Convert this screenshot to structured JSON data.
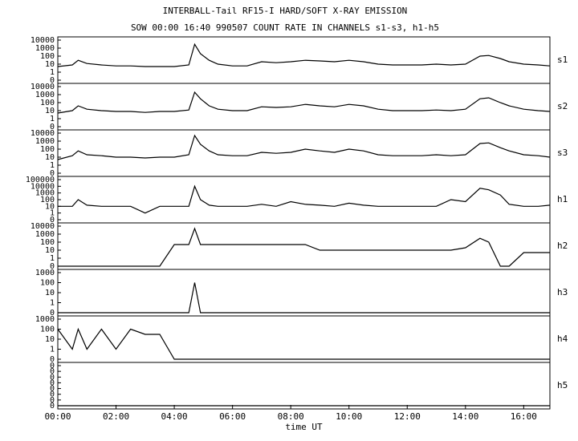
{
  "chart_data": [
    {
      "type": "line",
      "title": "INTERBALL-Tail RF15-I HARD/SOFT X-RAY EMISSION",
      "subtitle": "SOW 00:00 16:40 990507  COUNT RATE IN CHANNELS s1-s3, h1-h5",
      "x": [
        0,
        0.5,
        0.7,
        1,
        1.5,
        2,
        2.5,
        3,
        3.5,
        4,
        4.5,
        4.7,
        4.9,
        5.2,
        5.5,
        6,
        6.5,
        7,
        7.5,
        8,
        8.5,
        9,
        9.5,
        10,
        10.5,
        11,
        11.5,
        12,
        12.5,
        13,
        13.5,
        14,
        14.5,
        14.8,
        15.2,
        15.5,
        16,
        16.5,
        16.9
      ],
      "series": [
        {
          "name": "s1",
          "color": "#000000",
          "values": [
            5,
            8,
            30,
            12,
            8,
            6,
            6,
            5,
            5,
            5,
            8,
            3000,
            200,
            30,
            10,
            6,
            6,
            20,
            15,
            20,
            30,
            25,
            20,
            30,
            20,
            10,
            8,
            8,
            8,
            10,
            8,
            10,
            100,
            120,
            50,
            20,
            10,
            8,
            6
          ]
        }
      ],
      "xlim": [
        0,
        16.9
      ],
      "ylim": [
        0,
        10000
      ],
      "yticks": [
        0,
        1,
        10,
        100,
        1000,
        10000
      ],
      "yscale": "log"
    },
    {
      "type": "line",
      "x": [
        0,
        0.5,
        0.7,
        1,
        1.5,
        2,
        2.5,
        3,
        3.5,
        4,
        4.5,
        4.7,
        4.9,
        5.2,
        5.5,
        6,
        6.5,
        7,
        7.5,
        8,
        8.5,
        9,
        9.5,
        10,
        10.5,
        11,
        11.5,
        12,
        12.5,
        13,
        13.5,
        14,
        14.5,
        14.8,
        15.2,
        15.5,
        16,
        16.5,
        16.9
      ],
      "series": [
        {
          "name": "s2",
          "color": "#000000",
          "values": [
            5,
            10,
            40,
            15,
            10,
            8,
            8,
            6,
            8,
            8,
            12,
            2000,
            300,
            40,
            15,
            10,
            10,
            30,
            25,
            30,
            60,
            40,
            30,
            60,
            40,
            15,
            10,
            10,
            10,
            12,
            10,
            15,
            300,
            400,
            100,
            40,
            15,
            10,
            8
          ]
        }
      ],
      "xlim": [
        0,
        16.9
      ],
      "ylim": [
        0,
        10000
      ],
      "yticks": [
        0,
        1,
        10,
        100,
        1000,
        10000
      ],
      "yscale": "log"
    },
    {
      "type": "line",
      "x": [
        0,
        0.5,
        0.7,
        1,
        1.5,
        2,
        2.5,
        3,
        3.5,
        4,
        4.5,
        4.7,
        4.9,
        5.2,
        5.5,
        6,
        6.5,
        7,
        7.5,
        8,
        8.5,
        9,
        9.5,
        10,
        10.5,
        11,
        11.5,
        12,
        12.5,
        13,
        13.5,
        14,
        14.5,
        14.8,
        15.2,
        15.5,
        16,
        16.5,
        16.9
      ],
      "series": [
        {
          "name": "s3",
          "color": "#000000",
          "values": [
            5,
            15,
            60,
            20,
            15,
            10,
            10,
            8,
            10,
            10,
            20,
            5000,
            400,
            60,
            20,
            15,
            15,
            40,
            30,
            40,
            100,
            60,
            40,
            100,
            60,
            20,
            15,
            15,
            15,
            20,
            15,
            20,
            500,
            600,
            150,
            60,
            20,
            15,
            10
          ]
        }
      ],
      "xlim": [
        0,
        16.9
      ],
      "ylim": [
        0,
        10000
      ],
      "yticks": [
        0,
        1,
        10,
        100,
        1000,
        10000
      ],
      "yscale": "log"
    },
    {
      "type": "line",
      "x": [
        0,
        0.5,
        0.7,
        1,
        1.5,
        2,
        2.5,
        3,
        3.5,
        4,
        4.5,
        4.7,
        4.9,
        5.2,
        5.5,
        6,
        6.5,
        7,
        7.5,
        8,
        8.5,
        9,
        9.5,
        10,
        10.5,
        11,
        11.5,
        12,
        12.5,
        13,
        13.5,
        14,
        14.5,
        14.8,
        15.2,
        15.5,
        16,
        16.5,
        16.9
      ],
      "series": [
        {
          "name": "h1",
          "color": "#000000",
          "values": [
            10,
            10,
            100,
            15,
            10,
            10,
            10,
            1,
            10,
            10,
            10,
            10000,
            100,
            15,
            10,
            10,
            10,
            20,
            10,
            50,
            20,
            15,
            10,
            30,
            15,
            10,
            10,
            10,
            10,
            10,
            100,
            50,
            5000,
            3000,
            500,
            20,
            10,
            10,
            15
          ]
        }
      ],
      "xlim": [
        0,
        16.9
      ],
      "ylim": [
        0,
        100000
      ],
      "yticks": [
        0,
        1,
        10,
        100,
        1000,
        10000,
        100000
      ],
      "yscale": "log"
    },
    {
      "type": "line",
      "x": [
        0,
        0.5,
        0.7,
        1,
        1.5,
        2,
        2.5,
        3,
        3.5,
        4,
        4.5,
        4.7,
        4.9,
        5.2,
        5.5,
        6,
        6.5,
        7,
        7.5,
        8,
        8.5,
        9,
        9.5,
        10,
        10.5,
        11,
        11.5,
        12,
        12.5,
        13,
        13.5,
        14,
        14.5,
        14.8,
        15.2,
        15.5,
        16,
        16.5,
        16.9
      ],
      "series": [
        {
          "name": "h2",
          "color": "#000000",
          "values": [
            0,
            0,
            0,
            0,
            0,
            0,
            0,
            0,
            0,
            50,
            50,
            5000,
            50,
            50,
            50,
            50,
            50,
            50,
            50,
            50,
            50,
            10,
            10,
            10,
            10,
            10,
            10,
            10,
            10,
            10,
            10,
            20,
            300,
            100,
            0,
            0,
            5,
            5,
            5
          ]
        }
      ],
      "xlim": [
        0,
        16.9
      ],
      "ylim": [
        0,
        10000
      ],
      "yticks": [
        0,
        1,
        10,
        100,
        1000,
        10000
      ],
      "yscale": "log"
    },
    {
      "type": "line",
      "x": [
        0,
        0.5,
        0.7,
        1,
        1.5,
        2,
        2.5,
        3,
        3.5,
        4,
        4.5,
        4.7,
        4.9,
        5.2,
        5.5,
        6,
        6.5,
        7,
        7.5,
        8,
        8.5,
        9,
        9.5,
        10,
        10.5,
        11,
        11.5,
        12,
        12.5,
        13,
        13.5,
        14,
        14.5,
        14.8,
        15.2,
        15.5,
        16,
        16.5,
        16.9
      ],
      "series": [
        {
          "name": "h3",
          "color": "#000000",
          "values": [
            0,
            0,
            0,
            0,
            0,
            0,
            0,
            0,
            0,
            0,
            0,
            100,
            0,
            0,
            0,
            0,
            0,
            0,
            0,
            0,
            0,
            0,
            0,
            0,
            0,
            0,
            0,
            0,
            0,
            0,
            0,
            0,
            0,
            0,
            0,
            0,
            0,
            0,
            0
          ]
        }
      ],
      "xlim": [
        0,
        16.9
      ],
      "ylim": [
        0,
        1000
      ],
      "yticks": [
        0,
        1,
        10,
        100,
        1000
      ],
      "yscale": "log"
    },
    {
      "type": "line",
      "x": [
        0,
        0.5,
        0.7,
        1,
        1.5,
        2,
        2.5,
        3,
        3.5,
        4,
        4.5,
        4.7,
        4.9,
        5.2,
        5.5,
        6,
        6.5,
        7,
        7.5,
        8,
        8.5,
        9,
        9.5,
        10,
        10.5,
        11,
        11.5,
        12,
        12.5,
        13,
        13.5,
        14,
        14.5,
        14.8,
        15.2,
        15.5,
        16,
        16.5,
        16.9
      ],
      "series": [
        {
          "name": "h4",
          "color": "#000000",
          "values": [
            100,
            1,
            100,
            1,
            100,
            1,
            100,
            30,
            30,
            0,
            0,
            0,
            0,
            0,
            0,
            0,
            0,
            0,
            0,
            0,
            0,
            0,
            0,
            0,
            0,
            0,
            0,
            0,
            0,
            0,
            0,
            0,
            0,
            0,
            0,
            0,
            0,
            0,
            0
          ]
        }
      ],
      "xlim": [
        0,
        16.9
      ],
      "ylim": [
        0,
        1000
      ],
      "yticks": [
        0,
        1,
        10,
        100,
        1000
      ],
      "yscale": "log"
    },
    {
      "type": "line",
      "x": [
        0,
        0.5,
        0.7,
        1,
        1.5,
        2,
        2.5,
        3,
        3.5,
        4,
        4.5,
        4.7,
        4.9,
        5.2,
        5.5,
        6,
        6.5,
        7,
        7.5,
        8,
        8.5,
        9,
        9.5,
        10,
        10.5,
        11,
        11.5,
        12,
        12.5,
        13,
        13.5,
        14,
        14.5,
        14.8,
        15.2,
        15.5,
        16,
        16.5,
        16.9
      ],
      "series": [
        {
          "name": "h5",
          "color": "#000000",
          "values": [
            0,
            0,
            0,
            0,
            0,
            0,
            0,
            0,
            0,
            0,
            0,
            0,
            0,
            0,
            0,
            0,
            0,
            0,
            0,
            0,
            0,
            0,
            0,
            0,
            0,
            0,
            0,
            0,
            0,
            0,
            0,
            0,
            0,
            0,
            0,
            0,
            0,
            0,
            0
          ]
        }
      ],
      "xlim": [
        0,
        16.9
      ],
      "ylim": [
        0,
        7
      ],
      "yticks": [
        {
          "value": 0,
          "label": "0"
        },
        {
          "value": 1,
          "label": "0"
        },
        {
          "value": 2,
          "label": "0"
        },
        {
          "value": 3,
          "label": "0"
        },
        {
          "value": 4,
          "label": "0"
        },
        {
          "value": 5,
          "label": "0"
        },
        {
          "value": 6,
          "label": "0"
        },
        {
          "value": 7,
          "label": "0"
        }
      ],
      "yscale": "linear",
      "xlabel": "time UT",
      "xticks": [
        {
          "value": 0,
          "label": "00:00"
        },
        {
          "value": 2,
          "label": "02:00"
        },
        {
          "value": 4,
          "label": "04:00"
        },
        {
          "value": 6,
          "label": "06:00"
        },
        {
          "value": 8,
          "label": "08:00"
        },
        {
          "value": 10,
          "label": "10:00"
        },
        {
          "value": 12,
          "label": "12:00"
        },
        {
          "value": 14,
          "label": "14:00"
        },
        {
          "value": 16,
          "label": "16:00"
        }
      ]
    }
  ]
}
